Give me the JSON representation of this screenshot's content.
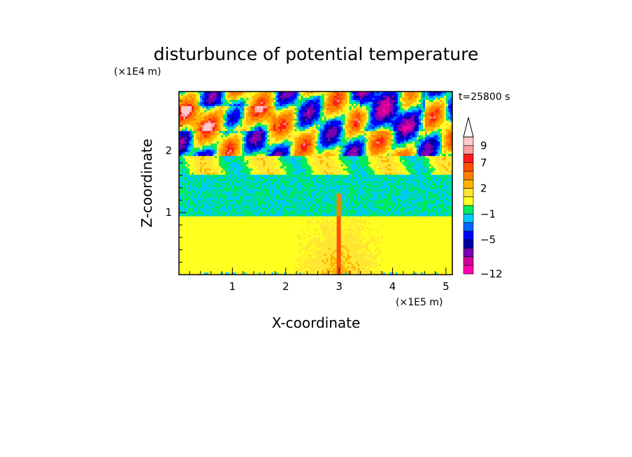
{
  "chart_data": {
    "type": "heatmap",
    "title": "disturbunce of potential temperature",
    "xlabel": "X-coordinate",
    "ylabel": "Z-coordinate",
    "x_unit": "(×1E5 m)",
    "y_unit": "(×1E4 m)",
    "time_label": "t=25800 s",
    "xlim": [
      0,
      5.12
    ],
    "ylim": [
      0,
      2.95
    ],
    "x_ticks": [
      {
        "value": 1,
        "label": "1"
      },
      {
        "value": 2,
        "label": "2"
      },
      {
        "value": 3,
        "label": "3"
      },
      {
        "value": 4,
        "label": "4"
      },
      {
        "value": 5,
        "label": "5"
      }
    ],
    "y_ticks": [
      {
        "value": 1,
        "label": "1"
      },
      {
        "value": 2,
        "label": "2"
      }
    ],
    "colorbar": {
      "levels": [
        {
          "value": -12,
          "color": "#ff00b0",
          "label": "−12"
        },
        {
          "value": -10,
          "color": "#d00098",
          "label": ""
        },
        {
          "value": -8,
          "color": "#7800b4",
          "label": ""
        },
        {
          "value": -6,
          "color": "#0000a0",
          "label": ""
        },
        {
          "value": -5,
          "color": "#0000ff",
          "label": "−5"
        },
        {
          "value": -3,
          "color": "#0064ff",
          "label": ""
        },
        {
          "value": -2,
          "color": "#00c8ff",
          "label": ""
        },
        {
          "value": -1,
          "color": "#00eb60",
          "label": "−1"
        },
        {
          "value": 0,
          "color": "#ffff20",
          "label": ""
        },
        {
          "value": 1,
          "color": "#ffe632",
          "label": ""
        },
        {
          "value": 2,
          "color": "#ffb400",
          "label": "2"
        },
        {
          "value": 4,
          "color": "#ff8000",
          "label": ""
        },
        {
          "value": 6,
          "color": "#ff5000",
          "label": ""
        },
        {
          "value": 7,
          "color": "#ff1a1a",
          "label": "7"
        },
        {
          "value": 8,
          "color": "#ffa0a0",
          "label": ""
        },
        {
          "value": 9,
          "color": "#ffc8c8",
          "label": "9"
        }
      ],
      "extend": "max"
    },
    "field_description_levels": {
      "surface_layer": 0.5,
      "mid_layer": 1.5,
      "upper_layer_mean": -1
    }
  }
}
